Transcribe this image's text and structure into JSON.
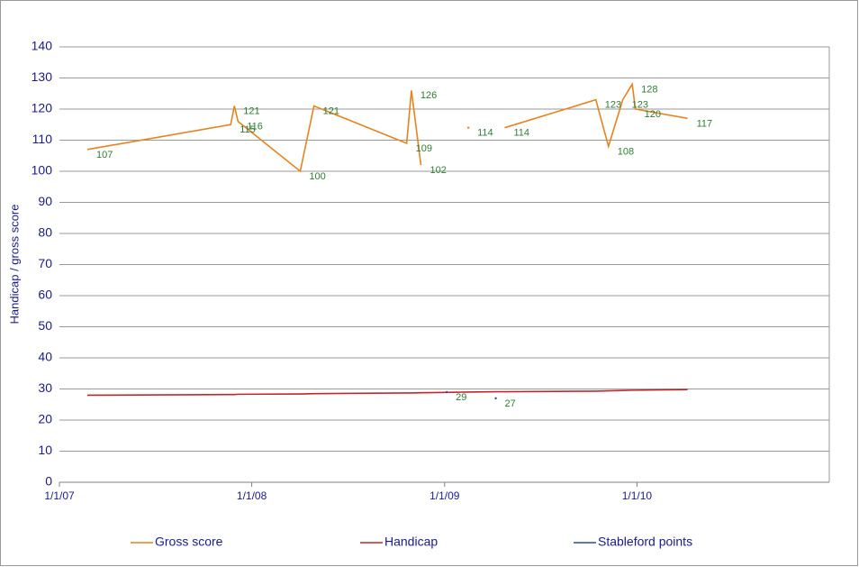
{
  "chart_data": {
    "type": "line",
    "y_label": "Handicap / gross score",
    "x": [
      "2007-02-23",
      "2007-11-22",
      "2007-11-29",
      "2007-12-06",
      "2008-04-02",
      "2008-04-28",
      "2008-10-21",
      "2008-10-30",
      "2008-11-17",
      "2009-01-05",
      "2009-02-15",
      "2009-04-08",
      "2009-04-25",
      "2009-10-15",
      "2009-11-08",
      "2009-12-05",
      "2009-12-23",
      "2009-12-29",
      "2010-04-07"
    ],
    "xlim": [
      "2007-01-01",
      "2011-01-01"
    ],
    "xticks": [
      {
        "value": "2007-01-01",
        "label": "1/1/07"
      },
      {
        "value": "2008-01-01",
        "label": "1/1/08"
      },
      {
        "value": "2009-01-01",
        "label": "1/1/09"
      },
      {
        "value": "2010-01-01",
        "label": "1/1/10"
      }
    ],
    "ylim": [
      0,
      140
    ],
    "yticks": [
      0,
      10,
      20,
      30,
      40,
      50,
      60,
      70,
      80,
      90,
      100,
      110,
      120,
      130,
      140
    ],
    "grid": true,
    "legend": "bottom",
    "series": [
      {
        "name": "Gross score",
        "color": "#e8821e",
        "show_labels": true,
        "values": [
          107,
          115,
          121,
          116,
          100,
          121,
          109,
          126,
          102,
          null,
          114,
          null,
          114,
          123,
          108,
          123,
          128,
          120,
          117
        ]
      },
      {
        "name": "Handicap",
        "color": "#c0282d",
        "show_labels": false,
        "values": [
          28,
          28.2,
          28.2,
          28.3,
          28.4,
          28.5,
          28.7,
          28.7,
          28.8,
          28.9,
          29,
          29.1,
          29.1,
          29.3,
          29.4,
          29.5,
          29.6,
          29.6,
          29.8
        ]
      },
      {
        "name": "Stableford points",
        "color": "#2a4d9c",
        "show_labels": true,
        "values": [
          null,
          null,
          null,
          null,
          null,
          null,
          null,
          null,
          null,
          29,
          null,
          27,
          null,
          null,
          null,
          null,
          null,
          null,
          null
        ]
      }
    ]
  }
}
